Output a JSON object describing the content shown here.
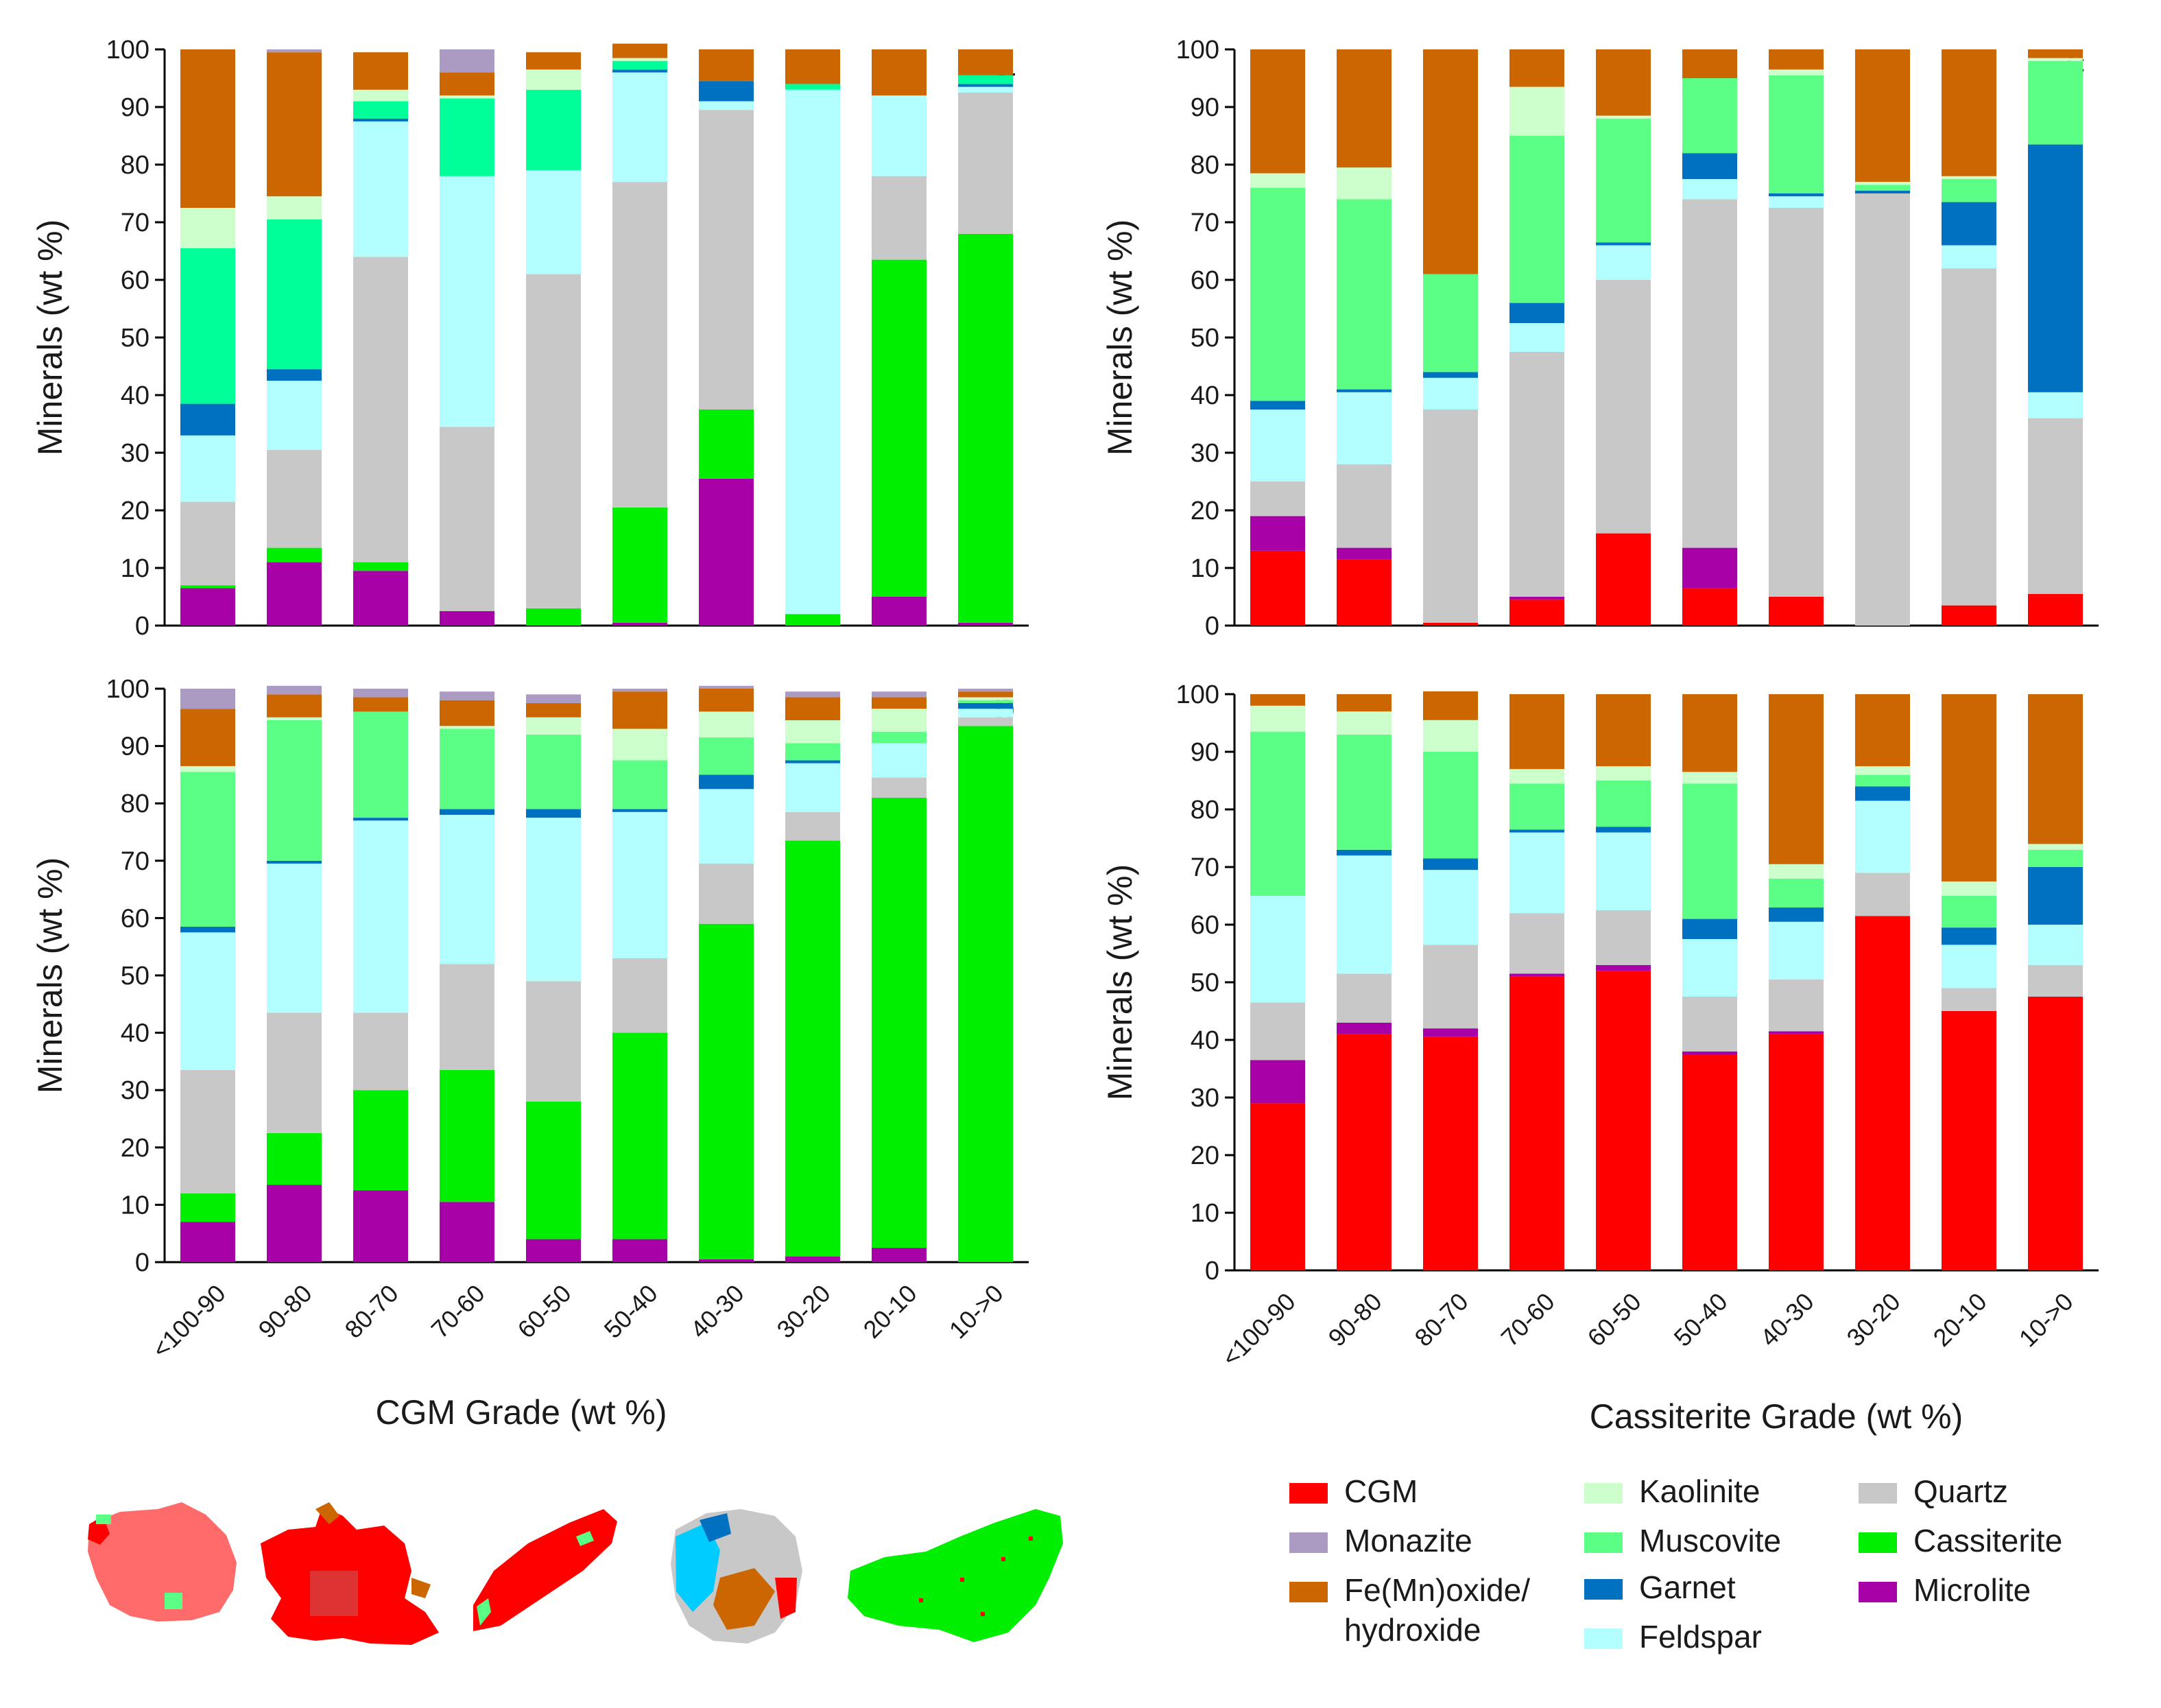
{
  "figure": {
    "x_title_left": "CGM Grade (wt %)",
    "x_title_right": "Cassiterite Grade (wt %)"
  },
  "colors": {
    "CGM": "#ff0000",
    "Monazite": "#ab9bc3",
    "FeMnOxide": "#cc6600",
    "Kaolinite": "#ccffcc",
    "Muscovite": "#5cff86",
    "Muscovite_a": "#00ff99",
    "Garnet": "#0070c0",
    "Garnet_d": "#3b5f9a",
    "Feldspar": "#b3ffff",
    "Quartz": "#c8c8c8",
    "Cassiterite": "#00ee00",
    "Microlite": "#a600a6"
  },
  "legend": {
    "items": [
      {
        "key": "CGM",
        "label": "CGM"
      },
      {
        "key": "Monazite",
        "label": "Monazite"
      },
      {
        "key": "FeMnOxide",
        "label": "Fe(Mn)oxide/",
        "label2": "hydroxide"
      },
      {
        "key": "Kaolinite",
        "label": "Kaolinite"
      },
      {
        "key": "Muscovite",
        "label": "Muscovite"
      },
      {
        "key": "Garnet",
        "label": "Garnet"
      },
      {
        "key": "Feldspar",
        "label": "Feldspar"
      },
      {
        "key": "Quartz",
        "label": "Quartz"
      },
      {
        "key": "Cassiterite",
        "label": "Cassiterite"
      },
      {
        "key": "Microlite",
        "label": "Microlite"
      }
    ]
  },
  "particles": [
    {
      "name": "particle-1",
      "colors": [
        "#ff6b6b",
        "#5cff86",
        "#ff0000"
      ]
    },
    {
      "name": "particle-2",
      "colors": [
        "#ff0000",
        "#cc6600",
        "#dd3333"
      ]
    },
    {
      "name": "particle-3",
      "colors": [
        "#ff0000",
        "#5cff86"
      ]
    },
    {
      "name": "particle-4",
      "colors": [
        "#c8c8c8",
        "#cc6600",
        "#00ccff",
        "#0070c0",
        "#ff0000"
      ]
    },
    {
      "name": "particle-5",
      "colors": [
        "#00ee00",
        "#ff0000"
      ]
    }
  ],
  "chart_data": [
    {
      "panel": "a",
      "type": "bar",
      "stacked": true,
      "ylabel": "Minerals (wt %)",
      "xlabel": "CGM Grade (wt %)",
      "ylim": [
        0,
        100
      ],
      "yticks": [
        0,
        10,
        20,
        30,
        40,
        50,
        60,
        70,
        80,
        90,
        100
      ],
      "categories": [
        "<100-90",
        "90-80",
        "80-70",
        "70-60",
        "60-50",
        "50-40",
        "40-30",
        "30-20",
        "20-10",
        "10->0"
      ],
      "series": [
        {
          "name": "CGM",
          "color_key": "CGM",
          "values": [
            0,
            0,
            0,
            0,
            0,
            0,
            0,
            0,
            0,
            0
          ]
        },
        {
          "name": "Microlite",
          "color_key": "Microlite",
          "values": [
            6.5,
            11,
            9.5,
            2.5,
            0,
            0.5,
            25.5,
            0,
            5,
            0.5
          ]
        },
        {
          "name": "Cassiterite",
          "color_key": "Cassiterite",
          "values": [
            0.5,
            2.5,
            1.5,
            0,
            3,
            20,
            12,
            2,
            58.5,
            67.5
          ]
        },
        {
          "name": "Quartz",
          "color_key": "Quartz",
          "values": [
            14.5,
            17,
            53,
            32,
            58,
            56.5,
            52,
            0,
            14.5,
            24.5
          ]
        },
        {
          "name": "Feldspar",
          "color_key": "Feldspar",
          "values": [
            11.5,
            12,
            23.5,
            43.5,
            18,
            19,
            1.5,
            91,
            14,
            1
          ]
        },
        {
          "name": "Garnet",
          "color_key": "Garnet",
          "values": [
            5.5,
            2,
            0.5,
            0,
            0,
            0.5,
            3.5,
            0,
            0,
            0.5
          ]
        },
        {
          "name": "Muscovite",
          "color_key": "Muscovite_a",
          "values": [
            27,
            26,
            3,
            13.5,
            14,
            1.5,
            0,
            1,
            0,
            1.5
          ]
        },
        {
          "name": "Kaolinite",
          "color_key": "Kaolinite",
          "values": [
            7,
            4,
            2,
            0.5,
            3.5,
            0.5,
            0,
            0,
            0,
            0
          ]
        },
        {
          "name": "Fe(Mn)oxide/hydroxide",
          "color_key": "FeMnOxide",
          "values": [
            27.5,
            25,
            6.5,
            4,
            3,
            2.5,
            5.5,
            6,
            8,
            4.5
          ]
        },
        {
          "name": "Monazite",
          "color_key": "Monazite",
          "values": [
            0,
            0.5,
            0,
            4,
            0,
            0,
            0,
            0,
            0,
            0
          ]
        }
      ]
    },
    {
      "panel": "b",
      "type": "bar",
      "stacked": true,
      "ylabel": "Minerals (wt %)",
      "xlabel": "CGM Grade (wt %)",
      "ylim": [
        0,
        100
      ],
      "yticks": [
        0,
        10,
        20,
        30,
        40,
        50,
        60,
        70,
        80,
        90,
        100
      ],
      "categories": [
        "<100-90",
        "90-80",
        "80-70",
        "70-60",
        "60-50",
        "50-40",
        "40-30",
        "30-20",
        "20-10",
        "10->0"
      ],
      "series": [
        {
          "name": "CGM",
          "color_key": "CGM",
          "values": [
            0,
            0,
            0,
            0,
            0,
            0,
            0,
            0,
            0,
            0
          ]
        },
        {
          "name": "Microlite",
          "color_key": "Microlite",
          "values": [
            7,
            13.5,
            12.5,
            10.5,
            4,
            4,
            0.5,
            1,
            2.5,
            0
          ]
        },
        {
          "name": "Cassiterite",
          "color_key": "Cassiterite",
          "values": [
            5,
            9,
            17.5,
            23,
            24,
            36,
            58.5,
            72.5,
            78.5,
            93.5
          ]
        },
        {
          "name": "Quartz",
          "color_key": "Quartz",
          "values": [
            21.5,
            21,
            13.5,
            18.5,
            21,
            13,
            10.5,
            5,
            3.5,
            1.5
          ]
        },
        {
          "name": "Feldspar",
          "color_key": "Feldspar",
          "values": [
            24,
            26,
            33.5,
            26,
            28.5,
            25.5,
            13,
            8.5,
            6,
            1.5
          ]
        },
        {
          "name": "Garnet",
          "color_key": "Garnet",
          "values": [
            1,
            0.5,
            0.5,
            1,
            1.5,
            0.5,
            2.5,
            0.5,
            0,
            1
          ]
        },
        {
          "name": "Muscovite",
          "color_key": "Muscovite",
          "values": [
            27,
            24.5,
            18.5,
            14,
            13,
            8.5,
            6.5,
            3,
            2,
            0.5
          ]
        },
        {
          "name": "Kaolinite",
          "color_key": "Kaolinite",
          "values": [
            1,
            0.5,
            0,
            0.5,
            3,
            5.5,
            4.5,
            4,
            4,
            0.5
          ]
        },
        {
          "name": "Fe(Mn)oxide/hydroxide",
          "color_key": "FeMnOxide",
          "values": [
            10,
            4,
            2.5,
            4.5,
            2.5,
            6.5,
            4,
            4,
            2,
            1
          ]
        },
        {
          "name": "Monazite",
          "color_key": "Monazite",
          "values": [
            3.5,
            1.5,
            1.5,
            1.5,
            1.5,
            0.5,
            0.5,
            1,
            1,
            0.5
          ]
        }
      ]
    },
    {
      "panel": "c",
      "type": "bar",
      "stacked": true,
      "ylabel": "Minerals (wt %)",
      "xlabel": "Cassiterite Grade (wt %)",
      "ylim": [
        0,
        100
      ],
      "yticks": [
        0,
        10,
        20,
        30,
        40,
        50,
        60,
        70,
        80,
        90,
        100
      ],
      "categories": [
        "<100-90",
        "90-80",
        "80-70",
        "70-60",
        "60-50",
        "50-40",
        "40-30",
        "30-20",
        "20-10",
        "10->0"
      ],
      "series": [
        {
          "name": "CGM",
          "color_key": "CGM",
          "values": [
            13,
            11.5,
            0.5,
            4.5,
            16,
            6.5,
            5,
            0,
            3.5,
            5.5
          ]
        },
        {
          "name": "Microlite",
          "color_key": "Microlite",
          "values": [
            6,
            2,
            0,
            0.5,
            0,
            7,
            0,
            0,
            0,
            0
          ]
        },
        {
          "name": "Cassiterite",
          "color_key": "Cassiterite",
          "values": [
            0,
            0,
            0,
            0,
            0,
            0,
            0,
            0,
            0,
            0
          ]
        },
        {
          "name": "Quartz",
          "color_key": "Quartz",
          "values": [
            6,
            14.5,
            37,
            42.5,
            44,
            60.5,
            67.5,
            75,
            58.5,
            30.5
          ]
        },
        {
          "name": "Feldspar",
          "color_key": "Feldspar",
          "values": [
            12.5,
            12.5,
            5.5,
            5,
            6,
            3.5,
            2,
            0,
            4,
            4.5
          ]
        },
        {
          "name": "Garnet",
          "color_key": "Garnet",
          "values": [
            1.5,
            0.5,
            1,
            3.5,
            0.5,
            4.5,
            0.5,
            0.5,
            7.5,
            43
          ]
        },
        {
          "name": "Muscovite",
          "color_key": "Muscovite",
          "values": [
            37,
            33,
            17,
            29,
            21.5,
            13,
            20.5,
            1,
            4,
            14.5
          ]
        },
        {
          "name": "Kaolinite",
          "color_key": "Kaolinite",
          "values": [
            2.5,
            5.5,
            0,
            8.5,
            0.5,
            0,
            1,
            0.5,
            0.5,
            0.5
          ]
        },
        {
          "name": "Fe(Mn)oxide/hydroxide",
          "color_key": "FeMnOxide",
          "values": [
            21.5,
            20.5,
            39,
            6.5,
            11.5,
            5,
            3.5,
            23,
            22,
            1.5
          ]
        },
        {
          "name": "Monazite",
          "color_key": "Monazite",
          "values": [
            0,
            0,
            0,
            0,
            0,
            0,
            0,
            0,
            0,
            0
          ]
        }
      ]
    },
    {
      "panel": "d",
      "type": "bar",
      "stacked": true,
      "ylabel": "Minerals (wt %)",
      "xlabel": "Cassiterite Grade (wt %)",
      "ylim": [
        0,
        100
      ],
      "yticks": [
        0,
        10,
        20,
        30,
        40,
        50,
        60,
        70,
        80,
        90,
        100
      ],
      "categories": [
        "<100-90",
        "90-80",
        "80-70",
        "70-60",
        "60-50",
        "50-40",
        "40-30",
        "30-20",
        "20-10",
        "10->0"
      ],
      "series": [
        {
          "name": "CGM",
          "color_key": "CGM",
          "values": [
            29,
            41,
            40.5,
            51,
            52,
            37.5,
            41,
            61.5,
            45,
            47.5
          ]
        },
        {
          "name": "Microlite",
          "color_key": "Microlite",
          "values": [
            7.5,
            2,
            1.5,
            0.5,
            1,
            0.5,
            0.5,
            0,
            0,
            0
          ]
        },
        {
          "name": "Cassiterite",
          "color_key": "Cassiterite",
          "values": [
            0,
            0,
            0,
            0,
            0,
            0,
            0,
            0,
            0,
            0
          ]
        },
        {
          "name": "Quartz",
          "color_key": "Quartz",
          "values": [
            10,
            8.5,
            14.5,
            10.5,
            9.5,
            9.5,
            9,
            7.5,
            4,
            5.5
          ]
        },
        {
          "name": "Feldspar",
          "color_key": "Feldspar",
          "values": [
            18.5,
            20.5,
            13,
            14,
            13.5,
            10,
            10,
            12.5,
            7.5,
            7
          ]
        },
        {
          "name": "Garnet",
          "color_key": "Garnet",
          "values": [
            0,
            1,
            2,
            0.5,
            1,
            3.5,
            2.5,
            2.5,
            3,
            10
          ]
        },
        {
          "name": "Muscovite",
          "color_key": "Muscovite",
          "values": [
            28.5,
            20,
            18.5,
            8,
            8,
            23.5,
            5,
            2,
            5.5,
            3
          ]
        },
        {
          "name": "Kaolinite",
          "color_key": "Kaolinite",
          "values": [
            4.5,
            4,
            5.5,
            2.5,
            2.5,
            2,
            2.5,
            1.5,
            2.5,
            1
          ]
        },
        {
          "name": "Fe(Mn)oxide/hydroxide",
          "color_key": "FeMnOxide",
          "values": [
            2,
            3,
            5,
            13,
            12.5,
            13.5,
            29.5,
            12.5,
            32.5,
            26
          ]
        },
        {
          "name": "Monazite",
          "color_key": "Monazite",
          "values": [
            0,
            0,
            0,
            0,
            0,
            0,
            0,
            0,
            0,
            0
          ]
        }
      ]
    }
  ]
}
